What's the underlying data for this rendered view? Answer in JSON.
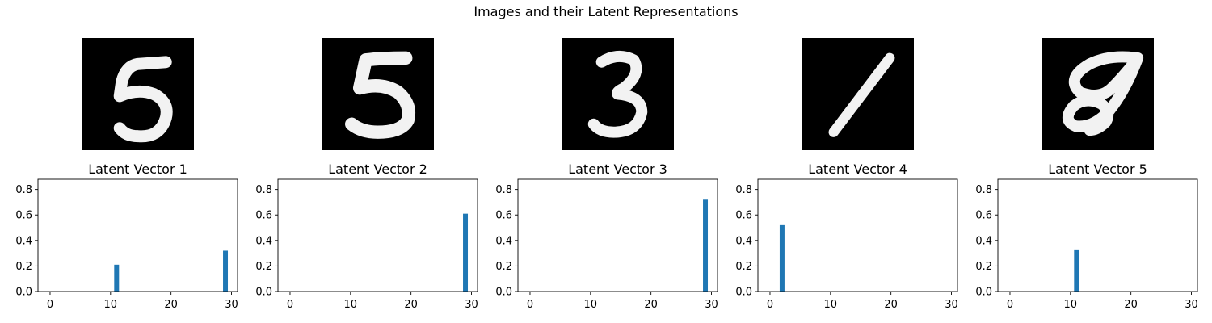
{
  "figure": {
    "title": "Images and their Latent Representations"
  },
  "images": [
    {
      "digit": "5"
    },
    {
      "digit": "5"
    },
    {
      "digit": "3"
    },
    {
      "digit": "1"
    },
    {
      "digit": "8"
    }
  ],
  "chart_data": [
    {
      "type": "bar",
      "title": "Latent Vector 1",
      "xlim": [
        -2,
        31
      ],
      "ylim": [
        0,
        0.88
      ],
      "xticks": [
        0,
        10,
        20,
        30
      ],
      "yticks": [
        0.0,
        0.2,
        0.4,
        0.6,
        0.8
      ],
      "x": [
        11,
        29
      ],
      "values": [
        0.21,
        0.32
      ],
      "color": "#1f77b4"
    },
    {
      "type": "bar",
      "title": "Latent Vector 2",
      "xlim": [
        -2,
        31
      ],
      "ylim": [
        0,
        0.88
      ],
      "xticks": [
        0,
        10,
        20,
        30
      ],
      "yticks": [
        0.0,
        0.2,
        0.4,
        0.6,
        0.8
      ],
      "x": [
        29
      ],
      "values": [
        0.61
      ],
      "color": "#1f77b4"
    },
    {
      "type": "bar",
      "title": "Latent Vector 3",
      "xlim": [
        -2,
        31
      ],
      "ylim": [
        0,
        0.88
      ],
      "xticks": [
        0,
        10,
        20,
        30
      ],
      "yticks": [
        0.0,
        0.2,
        0.4,
        0.6,
        0.8
      ],
      "x": [
        29
      ],
      "values": [
        0.72
      ],
      "color": "#1f77b4"
    },
    {
      "type": "bar",
      "title": "Latent Vector 4",
      "xlim": [
        -2,
        31
      ],
      "ylim": [
        0,
        0.88
      ],
      "xticks": [
        0,
        10,
        20,
        30
      ],
      "yticks": [
        0.0,
        0.2,
        0.4,
        0.6,
        0.8
      ],
      "x": [
        2
      ],
      "values": [
        0.52
      ],
      "color": "#1f77b4"
    },
    {
      "type": "bar",
      "title": "Latent Vector 5",
      "xlim": [
        -2,
        31
      ],
      "ylim": [
        0,
        0.88
      ],
      "xticks": [
        0,
        10,
        20,
        30
      ],
      "yticks": [
        0.0,
        0.2,
        0.4,
        0.6,
        0.8
      ],
      "x": [
        11
      ],
      "values": [
        0.33
      ],
      "color": "#1f77b4"
    }
  ]
}
